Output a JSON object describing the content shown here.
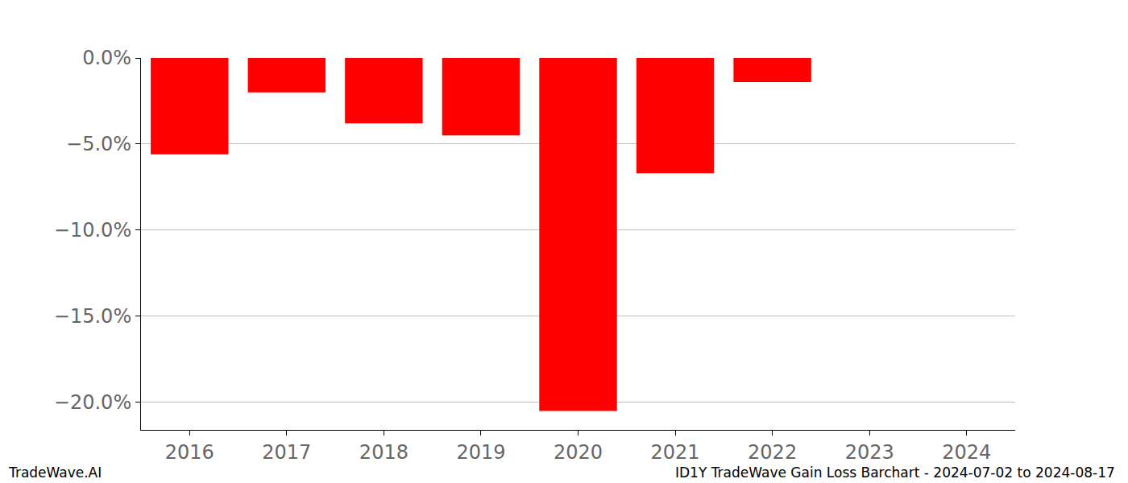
{
  "chart_data": {
    "type": "bar",
    "categories": [
      "2016",
      "2017",
      "2018",
      "2019",
      "2020",
      "2021",
      "2022",
      "2023",
      "2024"
    ],
    "values": [
      -5.6,
      -2.0,
      -3.8,
      -4.5,
      -20.5,
      -6.7,
      -1.4,
      0,
      0
    ],
    "color": "#ff0000",
    "ylim": [
      -21.6,
      0
    ],
    "yticks": [
      {
        "value": 0,
        "label": "0.0%"
      },
      {
        "value": -5,
        "label": "−5.0%"
      },
      {
        "value": -10,
        "label": "−10.0%"
      },
      {
        "value": -15,
        "label": "−15.0%"
      },
      {
        "value": -20,
        "label": "−20.0%"
      }
    ],
    "grid": true,
    "annotations": [
      "TradeWave.AI",
      "ID1Y TradeWave Gain Loss Barchart - 2024-07-02 to 2024-08-17"
    ]
  }
}
